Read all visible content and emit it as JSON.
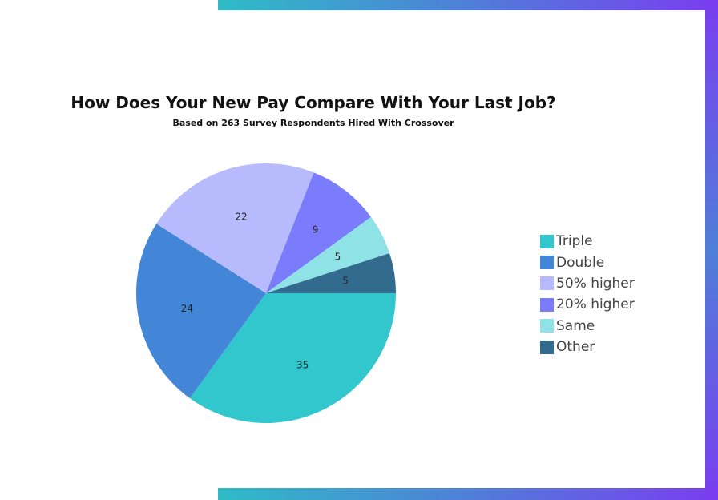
{
  "decor": {
    "gradient_start": "#2fbcc6",
    "gradient_mid": "#4f7fd8",
    "gradient_end": "#7a3df0"
  },
  "chart_data": {
    "type": "pie",
    "title": "How Does Your New Pay Compare With Your Last Job?",
    "subtitle": "Based on 263 Survey Respondents Hired With Crossover",
    "slices": [
      {
        "label": "Triple",
        "value": 35,
        "color": "#31c7cc"
      },
      {
        "label": "Double",
        "value": 24,
        "color": "#4385d7"
      },
      {
        "label": "50% higher",
        "value": 22,
        "color": "#b7bafc"
      },
      {
        "label": "20% higher",
        "value": 9,
        "color": "#7a7cfb"
      },
      {
        "label": "Same",
        "value": 5,
        "color": "#8fe2e6"
      },
      {
        "label": "Other",
        "value": 5,
        "color": "#336b8e"
      }
    ],
    "legend_position": "right"
  }
}
